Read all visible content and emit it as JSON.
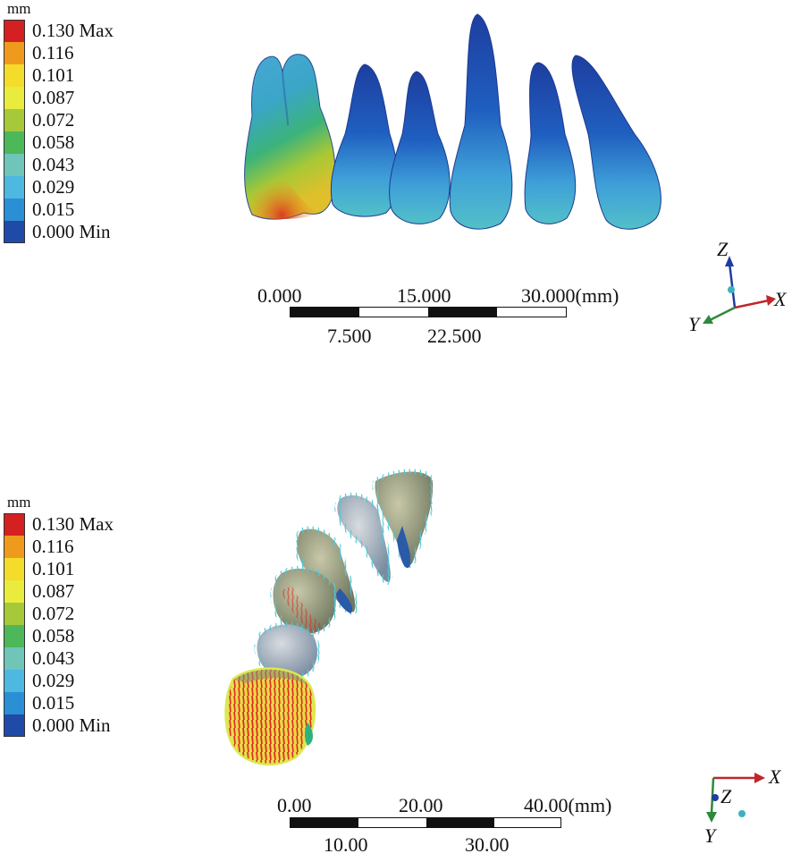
{
  "legend": {
    "unit": "mm",
    "entries": [
      {
        "label": "0.130 Max",
        "color": "#d42020"
      },
      {
        "label": "0.116",
        "color": "#ef9a1c"
      },
      {
        "label": "0.101",
        "color": "#f4dc2a"
      },
      {
        "label": "0.087",
        "color": "#e9ec3c"
      },
      {
        "label": "0.072",
        "color": "#a6c93a"
      },
      {
        "label": "0.058",
        "color": "#4cb85a"
      },
      {
        "label": "0.043",
        "color": "#6fc5b8"
      },
      {
        "label": "0.029",
        "color": "#4db8e0"
      },
      {
        "label": "0.015",
        "color": "#2a8fd4"
      },
      {
        "label": "0.000 Min",
        "color": "#1f4aa8"
      }
    ]
  },
  "top_view": {
    "scale_top": [
      "0.000",
      "15.000",
      "30.000(mm)"
    ],
    "scale_bottom": [
      "7.500",
      "22.500"
    ],
    "axes": {
      "x": "X",
      "y": "Y",
      "z": "Z"
    }
  },
  "bottom_view": {
    "scale_top": [
      "0.00",
      "20.00",
      "40.00(mm)"
    ],
    "scale_bottom": [
      "10.00",
      "30.00"
    ],
    "axes": {
      "x": "X",
      "y": "Y",
      "z": "Z"
    }
  },
  "colors": {
    "axis_x": "#c0262a",
    "axis_y": "#2e8a3a",
    "axis_z": "#1f3da0"
  }
}
